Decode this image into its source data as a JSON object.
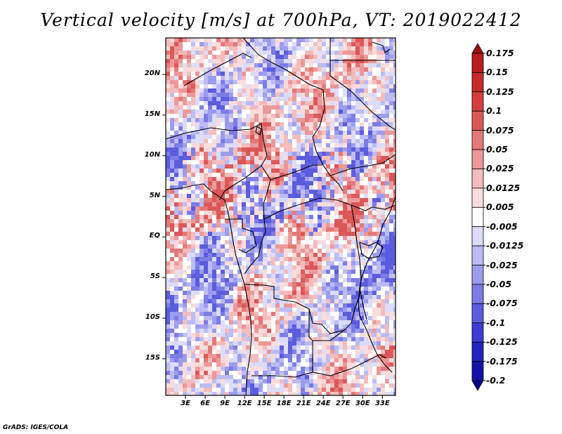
{
  "title": "Vertical velocity [m/s] at 700hPa, VT: 2019022412",
  "credit": "GrADS: IGES/COLA",
  "map": {
    "variable": "Vertical velocity",
    "units": "m/s",
    "level": "700hPa",
    "valid_time": "2019022412",
    "lon_range": [
      0,
      35
    ],
    "lat_range": [
      -19.5,
      24.5
    ],
    "lat_labels": [
      {
        "text": "20N",
        "lat": 20
      },
      {
        "text": "15N",
        "lat": 15
      },
      {
        "text": "10N",
        "lat": 10
      },
      {
        "text": "5N",
        "lat": 5
      },
      {
        "text": "EQ",
        "lat": 0
      },
      {
        "text": "5S",
        "lat": -5
      },
      {
        "text": "10S",
        "lat": -10
      },
      {
        "text": "15S",
        "lat": -15
      }
    ],
    "lon_labels": [
      {
        "text": "3E",
        "lon": 3
      },
      {
        "text": "6E",
        "lon": 6
      },
      {
        "text": "9E",
        "lon": 9
      },
      {
        "text": "12E",
        "lon": 12
      },
      {
        "text": "15E",
        "lon": 15
      },
      {
        "text": "18E",
        "lon": 18
      },
      {
        "text": "21E",
        "lon": 21
      },
      {
        "text": "24E",
        "lon": 24
      },
      {
        "text": "27E",
        "lon": 27
      },
      {
        "text": "30E",
        "lon": 30
      },
      {
        "text": "33E",
        "lon": 33
      }
    ]
  },
  "colorbar": {
    "labels": [
      "0.175",
      "0.15",
      "0.125",
      "0.1",
      "0.075",
      "0.05",
      "0.025",
      "0.0125",
      "0.005",
      "-0.005",
      "-0.0125",
      "-0.025",
      "-0.05",
      "-0.075",
      "-0.1",
      "-0.125",
      "-0.175",
      "-0.2"
    ],
    "colors": [
      "#a01010",
      "#b81c1c",
      "#c82a2a",
      "#d43e3e",
      "#dc5858",
      "#e47878",
      "#ec9898",
      "#f4bcbc",
      "#fadcdc",
      "#ffffff",
      "#dcdcfa",
      "#bcbcf4",
      "#9c9cee",
      "#7c7ce6",
      "#5c5cde",
      "#3c3cd4",
      "#2222c0",
      "#1212a8",
      "#000090"
    ]
  }
}
